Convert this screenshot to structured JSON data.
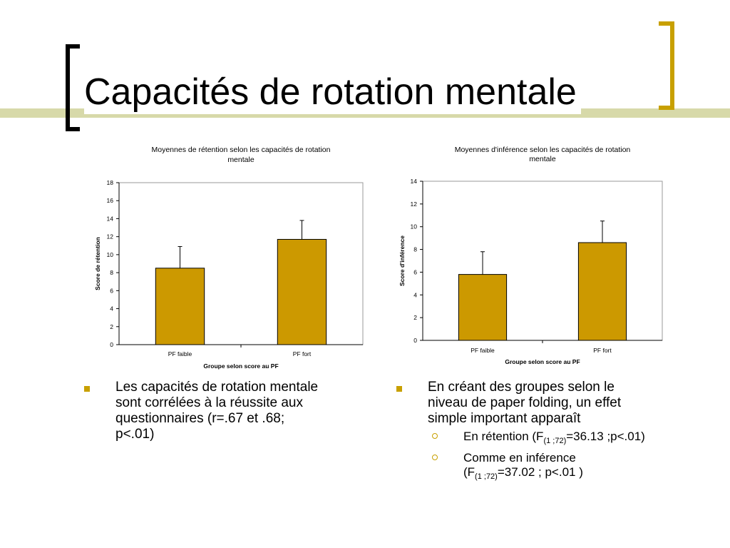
{
  "slide": {
    "title": "Capacités de rotation mentale",
    "accent_color": "#c8a000",
    "band_color": "#d7d9a9"
  },
  "chart_data": [
    {
      "type": "bar",
      "title_line1": "Moyennes de rétention selon les capacités de rotation",
      "title_line2": "mentale",
      "xlabel": "Groupe selon score au PF",
      "ylabel": "Score de rétention",
      "categories": [
        "PF faible",
        "PF fort"
      ],
      "values": [
        8.5,
        11.7
      ],
      "error_upper": [
        10.9,
        13.8
      ],
      "ylim": [
        0,
        18
      ],
      "yticks": [
        "0",
        "2",
        "4",
        "6",
        "8",
        "10",
        "12",
        "14",
        "16",
        "18"
      ],
      "bar_color": "#cc9900",
      "grid": false
    },
    {
      "type": "bar",
      "title_line1": "Moyennes d'inférence selon les capacités de rotation",
      "title_line2": "mentale",
      "xlabel": "Groupe selon score au PF",
      "ylabel": "Score d'inférence",
      "categories": [
        "PF faible",
        "PF fort"
      ],
      "values": [
        5.8,
        8.6
      ],
      "error_upper": [
        7.8,
        10.5
      ],
      "ylim": [
        0,
        14
      ],
      "yticks": [
        "0",
        "2",
        "4",
        "6",
        "8",
        "10",
        "12",
        "14"
      ],
      "bar_color": "#cc9900",
      "grid": false
    }
  ],
  "bullets_left": {
    "items": [
      {
        "lines": [
          "Les capacités de rotation mentale",
          "sont corrélées à la réussite aux",
          "questionnaires (r=.67 et .68;",
          "p<.01)"
        ]
      }
    ]
  },
  "bullets_right": {
    "item": {
      "lines": [
        "En créant des groupes selon le",
        "niveau de paper folding, un effet",
        "simple important apparaît"
      ]
    },
    "sub1": {
      "pre": "En rétention (F",
      "sub": "(1 ;72)",
      "post": "=36.13 ;p<.01)"
    },
    "sub2": {
      "line1": "Comme en inférence",
      "pre": "(F",
      "sub": "(1 ;72)",
      "post": "=37.02 ; p<.01 )"
    }
  }
}
